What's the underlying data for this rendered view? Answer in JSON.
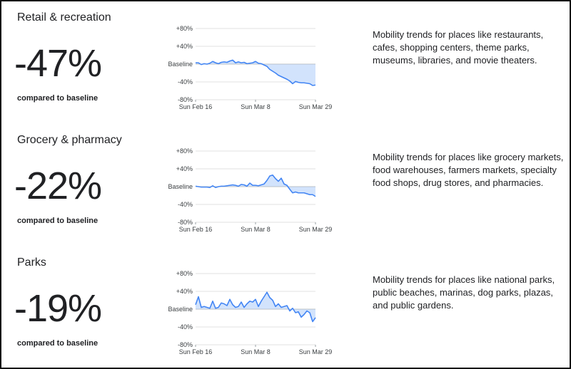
{
  "sections": [
    {
      "title": "Retail & recreation",
      "percent": "-47%",
      "compared_label": "compared to baseline",
      "description": "Mobility trends for places like restaurants, cafes, shopping centers, theme parks, museums, libraries, and movie theaters."
    },
    {
      "title": "Grocery & pharmacy",
      "percent": "-22%",
      "compared_label": "compared to baseline",
      "description": "Mobility trends for places like grocery markets, food warehouses, farmers markets, specialty food shops, drug stores, and pharmacies."
    },
    {
      "title": "Parks",
      "percent": "-19%",
      "compared_label": "compared to baseline",
      "description": "Mobility trends for places like national parks, public beaches, marinas, dog parks, plazas, and public gardens."
    }
  ],
  "colors": {
    "line": "#4285f4",
    "fill": "#d2e3fc",
    "grid": "#e0e0e0",
    "text": "#202124"
  },
  "chart_data": [
    {
      "type": "area",
      "title": "Retail & recreation",
      "x": [
        "2020-02-16",
        "2020-02-17",
        "2020-02-18",
        "2020-02-19",
        "2020-02-20",
        "2020-02-21",
        "2020-02-22",
        "2020-02-23",
        "2020-02-24",
        "2020-02-25",
        "2020-02-26",
        "2020-02-27",
        "2020-02-28",
        "2020-02-29",
        "2020-03-01",
        "2020-03-02",
        "2020-03-03",
        "2020-03-04",
        "2020-03-05",
        "2020-03-06",
        "2020-03-07",
        "2020-03-08",
        "2020-03-09",
        "2020-03-10",
        "2020-03-11",
        "2020-03-12",
        "2020-03-13",
        "2020-03-14",
        "2020-03-15",
        "2020-03-16",
        "2020-03-17",
        "2020-03-18",
        "2020-03-19",
        "2020-03-20",
        "2020-03-21",
        "2020-03-22",
        "2020-03-23",
        "2020-03-24",
        "2020-03-25",
        "2020-03-26",
        "2020-03-27",
        "2020-03-28",
        "2020-03-29"
      ],
      "values": [
        3,
        3,
        -1,
        1,
        0,
        2,
        6,
        3,
        1,
        4,
        5,
        4,
        7,
        9,
        3,
        5,
        3,
        4,
        1,
        2,
        3,
        6,
        2,
        1,
        -2,
        -5,
        -12,
        -16,
        -20,
        -25,
        -28,
        -31,
        -34,
        -38,
        -44,
        -39,
        -41,
        -42,
        -42,
        -43,
        -44,
        -48,
        -47
      ],
      "xticks": [
        "Sun Feb 16",
        "Sun Mar 8",
        "Sun Mar 29"
      ],
      "yticks": [
        "+80%",
        "+40%",
        "Baseline",
        "-40%",
        "-80%"
      ],
      "ylim": [
        -80,
        80
      ],
      "grid": true,
      "fill_to": "Baseline"
    },
    {
      "type": "area",
      "title": "Grocery & pharmacy",
      "x": [
        "2020-02-16",
        "2020-02-17",
        "2020-02-18",
        "2020-02-19",
        "2020-02-20",
        "2020-02-21",
        "2020-02-22",
        "2020-02-23",
        "2020-02-24",
        "2020-02-25",
        "2020-02-26",
        "2020-02-27",
        "2020-02-28",
        "2020-02-29",
        "2020-03-01",
        "2020-03-02",
        "2020-03-03",
        "2020-03-04",
        "2020-03-05",
        "2020-03-06",
        "2020-03-07",
        "2020-03-08",
        "2020-03-09",
        "2020-03-10",
        "2020-03-11",
        "2020-03-12",
        "2020-03-13",
        "2020-03-14",
        "2020-03-15",
        "2020-03-16",
        "2020-03-17",
        "2020-03-18",
        "2020-03-19",
        "2020-03-20",
        "2020-03-21",
        "2020-03-22",
        "2020-03-23",
        "2020-03-24",
        "2020-03-25",
        "2020-03-26",
        "2020-03-27",
        "2020-03-28",
        "2020-03-29"
      ],
      "values": [
        1,
        0,
        -1,
        -1,
        -1,
        -2,
        2,
        -2,
        0,
        1,
        1,
        2,
        3,
        4,
        3,
        1,
        5,
        4,
        1,
        8,
        3,
        3,
        2,
        4,
        6,
        14,
        24,
        26,
        18,
        12,
        19,
        6,
        3,
        -6,
        -14,
        -12,
        -14,
        -14,
        -14,
        -16,
        -18,
        -18,
        -22
      ],
      "xticks": [
        "Sun Feb 16",
        "Sun Mar 8",
        "Sun Mar 29"
      ],
      "yticks": [
        "+80%",
        "+40%",
        "Baseline",
        "-40%",
        "-80%"
      ],
      "ylim": [
        -80,
        80
      ],
      "grid": true,
      "fill_to": "Baseline"
    },
    {
      "type": "area",
      "title": "Parks",
      "x": [
        "2020-02-16",
        "2020-02-17",
        "2020-02-18",
        "2020-02-19",
        "2020-02-20",
        "2020-02-21",
        "2020-02-22",
        "2020-02-23",
        "2020-02-24",
        "2020-02-25",
        "2020-02-26",
        "2020-02-27",
        "2020-02-28",
        "2020-02-29",
        "2020-03-01",
        "2020-03-02",
        "2020-03-03",
        "2020-03-04",
        "2020-03-05",
        "2020-03-06",
        "2020-03-07",
        "2020-03-08",
        "2020-03-09",
        "2020-03-10",
        "2020-03-11",
        "2020-03-12",
        "2020-03-13",
        "2020-03-14",
        "2020-03-15",
        "2020-03-16",
        "2020-03-17",
        "2020-03-18",
        "2020-03-19",
        "2020-03-20",
        "2020-03-21",
        "2020-03-22",
        "2020-03-23",
        "2020-03-24",
        "2020-03-25",
        "2020-03-26",
        "2020-03-27",
        "2020-03-28",
        "2020-03-29"
      ],
      "values": [
        10,
        28,
        4,
        6,
        4,
        2,
        18,
        2,
        4,
        14,
        12,
        8,
        22,
        10,
        4,
        6,
        16,
        4,
        12,
        18,
        16,
        22,
        6,
        18,
        28,
        38,
        26,
        20,
        6,
        12,
        4,
        6,
        8,
        -4,
        2,
        -8,
        -6,
        -18,
        -12,
        -4,
        -8,
        -28,
        -19
      ],
      "xticks": [
        "Sun Feb 16",
        "Sun Mar 8",
        "Sun Mar 29"
      ],
      "yticks": [
        "+80%",
        "+40%",
        "Baseline",
        "-40%",
        "-80%"
      ],
      "ylim": [
        -80,
        80
      ],
      "grid": true,
      "fill_to": "Baseline"
    }
  ]
}
